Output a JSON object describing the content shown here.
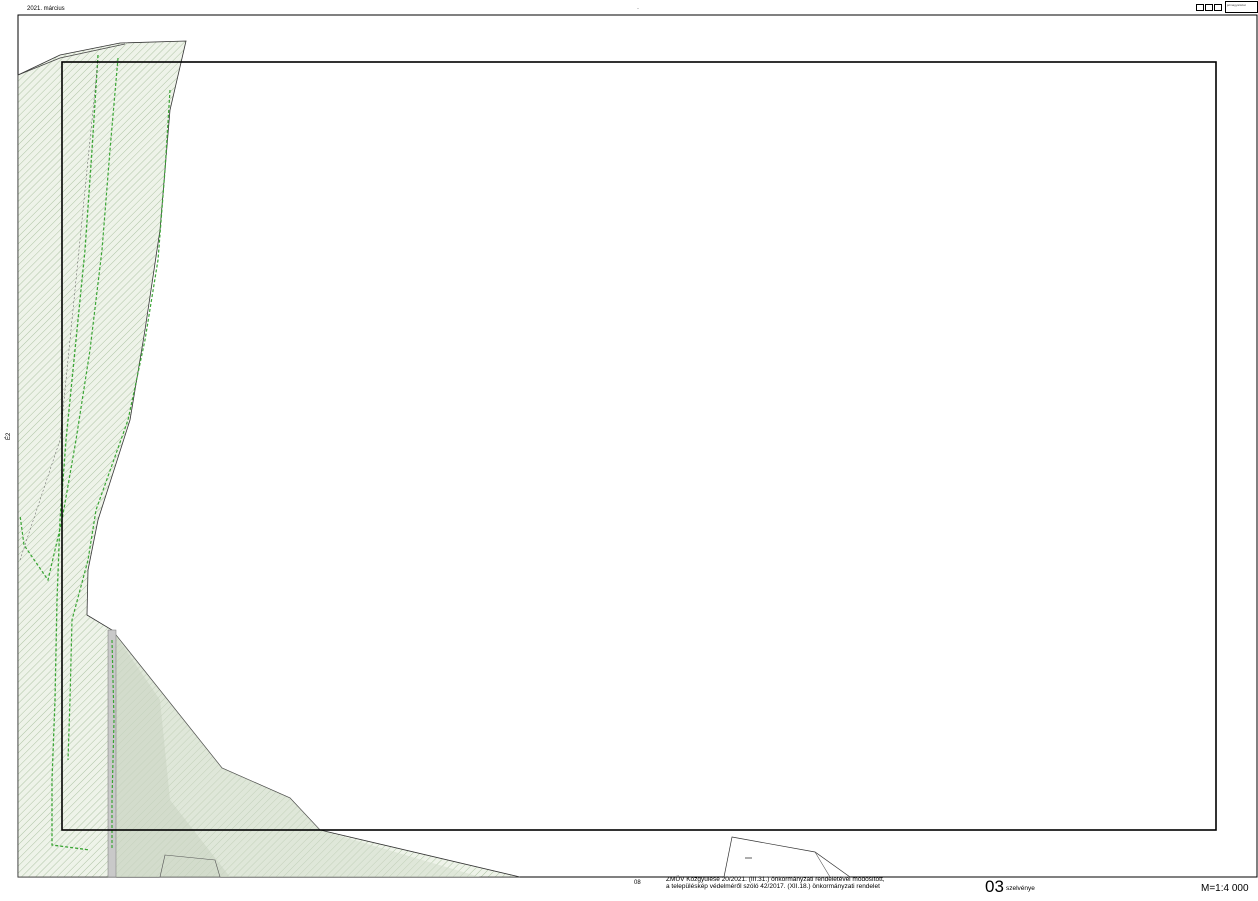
{
  "header": {
    "date": "2021. március",
    "center_mark": "·",
    "legend_caption": "jelmagyarázat"
  },
  "side_mark": "É2",
  "footer": {
    "page": "08",
    "line1": "ZMÜV Közgyűlése 20/2021. (III.31.) önkormányzati rendeletével módosított,",
    "line2": "a településkép védelméről szóló 42/2017. (XII.18.) önkormányzati rendelet",
    "sheet_number": "03",
    "sheet_suffix": "szelvénye",
    "scale": "M=1:4 000"
  },
  "map": {
    "zone_fill": "#e4ecdc",
    "hatch_color": "#9fb894",
    "green_boundary_color": "#3aa534",
    "frame_color": "#000000"
  }
}
